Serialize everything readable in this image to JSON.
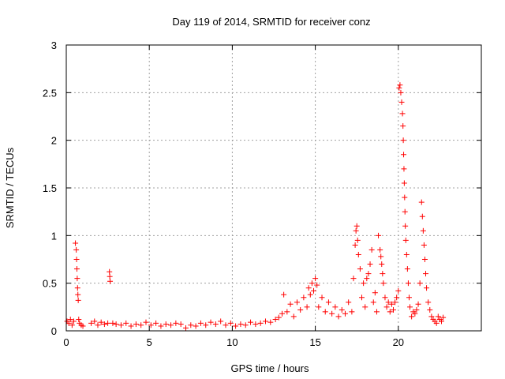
{
  "chart_data": {
    "type": "scatter",
    "title": "Day 119 of 2014, SRMTID for receiver conz",
    "xlabel": "GPS time / hours",
    "ylabel": "SRMTID / TECUs",
    "xlim": [
      0,
      25
    ],
    "ylim": [
      0,
      3
    ],
    "x_ticks": [
      0,
      5,
      10,
      15,
      20
    ],
    "x_tick_labels": [
      "0",
      "5",
      "10",
      "15",
      "20"
    ],
    "y_ticks": [
      0,
      0.5,
      1,
      1.5,
      2,
      2.5,
      3
    ],
    "y_tick_labels": [
      "0",
      "0.5",
      "1",
      "1.5",
      "2",
      "2.5",
      "3"
    ],
    "grid": true,
    "marker": "+",
    "color": "#ff0000",
    "series": [
      {
        "name": "SRMTID",
        "x": [
          0.05,
          0.15,
          0.25,
          0.35,
          0.45,
          0.55,
          0.6,
          0.62,
          0.64,
          0.66,
          0.68,
          0.7,
          0.72,
          0.75,
          0.8,
          0.9,
          1.0,
          1.5,
          1.7,
          1.9,
          2.1,
          2.3,
          2.5,
          2.6,
          2.62,
          2.64,
          2.8,
          3.0,
          3.3,
          3.6,
          3.9,
          4.2,
          4.5,
          4.8,
          5.1,
          5.4,
          5.7,
          6.0,
          6.3,
          6.6,
          6.9,
          7.2,
          7.5,
          7.8,
          8.1,
          8.4,
          8.7,
          9.0,
          9.3,
          9.6,
          9.9,
          10.2,
          10.5,
          10.8,
          11.1,
          11.4,
          11.7,
          12.0,
          12.3,
          12.6,
          12.8,
          13.0,
          13.1,
          13.3,
          13.5,
          13.7,
          13.9,
          14.1,
          14.3,
          14.5,
          14.6,
          14.7,
          14.8,
          14.9,
          15.0,
          15.1,
          15.2,
          15.4,
          15.6,
          15.8,
          16.0,
          16.2,
          16.4,
          16.6,
          16.8,
          17.0,
          17.2,
          17.3,
          17.4,
          17.45,
          17.5,
          17.55,
          17.6,
          17.7,
          17.8,
          17.9,
          18.0,
          18.1,
          18.2,
          18.3,
          18.4,
          18.5,
          18.6,
          18.7,
          18.8,
          18.9,
          18.95,
          19.0,
          19.05,
          19.1,
          19.2,
          19.3,
          19.4,
          19.5,
          19.6,
          19.7,
          19.8,
          19.9,
          20.0,
          20.05,
          20.1,
          20.15,
          20.2,
          20.25,
          20.28,
          20.3,
          20.32,
          20.34,
          20.36,
          20.38,
          20.4,
          20.42,
          20.45,
          20.5,
          20.55,
          20.6,
          20.65,
          20.7,
          20.8,
          20.9,
          21.0,
          21.1,
          21.2,
          21.3,
          21.4,
          21.45,
          21.5,
          21.55,
          21.6,
          21.65,
          21.7,
          21.8,
          21.9,
          22.0,
          22.1,
          22.2,
          22.3,
          22.4,
          22.5,
          22.6,
          22.7
        ],
        "y": [
          0.1,
          0.08,
          0.12,
          0.06,
          0.1,
          0.92,
          0.85,
          0.75,
          0.65,
          0.55,
          0.45,
          0.38,
          0.32,
          0.12,
          0.08,
          0.06,
          0.05,
          0.08,
          0.1,
          0.06,
          0.09,
          0.07,
          0.08,
          0.62,
          0.57,
          0.52,
          0.08,
          0.07,
          0.06,
          0.08,
          0.05,
          0.07,
          0.06,
          0.09,
          0.06,
          0.08,
          0.05,
          0.07,
          0.06,
          0.08,
          0.07,
          0.03,
          0.06,
          0.05,
          0.08,
          0.06,
          0.09,
          0.07,
          0.1,
          0.06,
          0.08,
          0.05,
          0.07,
          0.06,
          0.09,
          0.07,
          0.08,
          0.1,
          0.09,
          0.12,
          0.14,
          0.18,
          0.38,
          0.2,
          0.28,
          0.15,
          0.3,
          0.22,
          0.35,
          0.25,
          0.45,
          0.38,
          0.5,
          0.42,
          0.55,
          0.48,
          0.25,
          0.35,
          0.2,
          0.3,
          0.18,
          0.25,
          0.15,
          0.22,
          0.18,
          0.3,
          0.2,
          0.55,
          0.9,
          1.05,
          1.1,
          0.95,
          0.8,
          0.65,
          0.35,
          0.5,
          0.25,
          0.55,
          0.6,
          0.7,
          0.85,
          0.3,
          0.4,
          0.2,
          1.0,
          0.85,
          0.78,
          0.7,
          0.6,
          0.5,
          0.35,
          0.25,
          0.3,
          0.2,
          0.28,
          0.22,
          0.3,
          0.35,
          0.42,
          2.55,
          2.58,
          2.5,
          2.4,
          2.28,
          2.15,
          2.0,
          1.85,
          1.7,
          1.55,
          1.4,
          1.25,
          1.1,
          0.95,
          0.8,
          0.65,
          0.5,
          0.35,
          0.25,
          0.15,
          0.2,
          0.18,
          0.22,
          0.28,
          0.5,
          1.35,
          1.2,
          1.05,
          0.9,
          0.75,
          0.6,
          0.45,
          0.3,
          0.22,
          0.15,
          0.12,
          0.1,
          0.08,
          0.15,
          0.12,
          0.1,
          0.14
        ]
      }
    ]
  }
}
